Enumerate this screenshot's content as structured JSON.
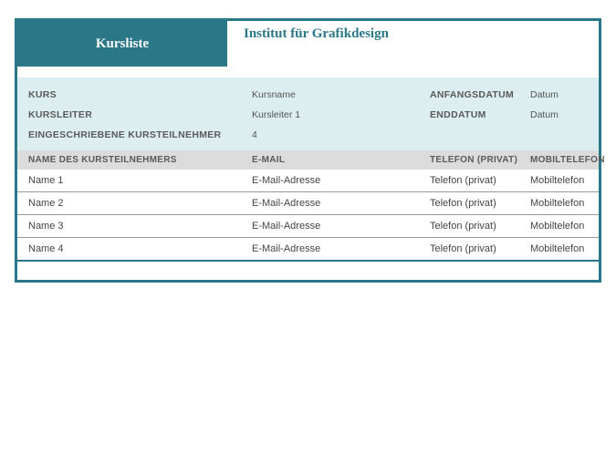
{
  "header": {
    "title": "Kursliste",
    "institute": "Institut für Grafikdesign"
  },
  "info": {
    "labels": {
      "kurs": "KURS",
      "kursleiter": "KURSLEITER",
      "eingeschriebene": "EINGESCHRIEBENE KURSTEILNEHMER",
      "anfangsdatum": "ANFANGSDATUM",
      "enddatum": "ENDDATUM"
    },
    "values": {
      "kurs": "Kursname",
      "kursleiter": "Kursleiter 1",
      "eingeschriebene": "4",
      "anfangsdatum": "Datum",
      "enddatum": "Datum"
    }
  },
  "table": {
    "columns": {
      "name": "NAME DES KURSTEILNEHMERS",
      "email": "E-MAIL",
      "phone": "TELEFON (PRIVAT)",
      "mobile": "MOBILTELEFON"
    },
    "rows": [
      {
        "name": "Name 1",
        "email": "E-Mail-Adresse",
        "phone": "Telefon (privat)",
        "mobile": "Mobiltelefon"
      },
      {
        "name": "Name 2",
        "email": "E-Mail-Adresse",
        "phone": "Telefon (privat)",
        "mobile": "Mobiltelefon"
      },
      {
        "name": "Name 3",
        "email": "E-Mail-Adresse",
        "phone": "Telefon (privat)",
        "mobile": "Mobiltelefon"
      },
      {
        "name": "Name 4",
        "email": "E-Mail-Adresse",
        "phone": "Telefon (privat)",
        "mobile": "Mobiltelefon"
      }
    ]
  },
  "style": {
    "accent_color": "#2a7788",
    "info_bg": "#dceef0",
    "header_bg": "#dcdcdc",
    "row_border": "#999999",
    "text_color": "#555555"
  }
}
